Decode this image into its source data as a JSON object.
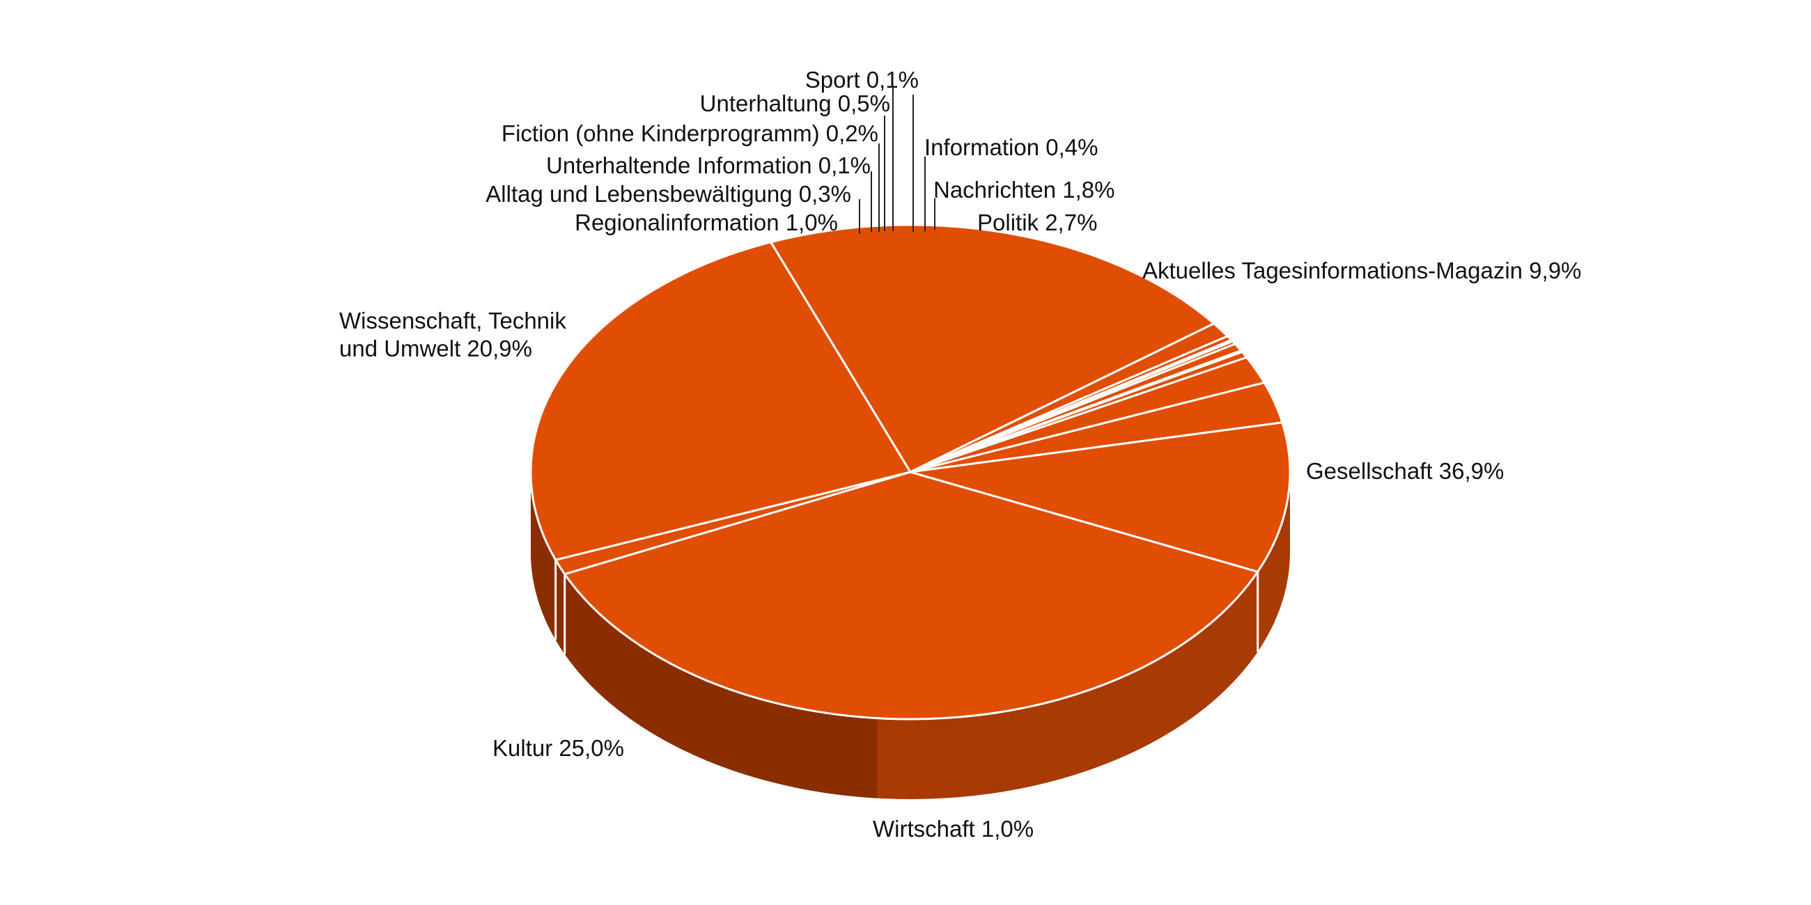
{
  "chart_data": {
    "type": "pie",
    "title": "",
    "style": "3d-pie",
    "colors": {
      "top": "#E04E04",
      "side": "#A83A04",
      "side_dark": "#8A2E00",
      "separator": "#FFFFFF",
      "text": "#111111"
    },
    "slices": [
      {
        "label": "Gesellschaft",
        "value": 36.9,
        "display": "Gesellschaft  36,9%"
      },
      {
        "label": "Wirtschaft",
        "value": 1.0,
        "display": "Wirtschaft  1,0%"
      },
      {
        "label": "Kultur",
        "value": 25.0,
        "display": "Kultur 25,0%"
      },
      {
        "label": "Wissenschaft, Technik und Umwelt",
        "value": 20.9,
        "display_lines": [
          "Wissenschaft, Technik",
          "und Umwelt  20,9%"
        ]
      },
      {
        "label": "Regionalinformation",
        "value": 1.0,
        "display": "Regionalinformation  1,0%"
      },
      {
        "label": "Alltag und Lebensbewältigung",
        "value": 0.3,
        "display": "Alltag und Lebensbewältigung  0,3%"
      },
      {
        "label": "Unterhaltende Information",
        "value": 0.1,
        "display": "Unterhaltende Information  0,1%"
      },
      {
        "label": "Fiction (ohne Kinderprogramm)",
        "value": 0.2,
        "display": "Fiction (ohne Kinderprogramm)  0,2%"
      },
      {
        "label": "Unterhaltung",
        "value": 0.5,
        "display": "Unterhaltung  0,5%"
      },
      {
        "label": "Sport",
        "value": 0.1,
        "display": "Sport  0,1%"
      },
      {
        "label": "Information",
        "value": 0.4,
        "display": "Information  0,4%"
      },
      {
        "label": "Nachrichten",
        "value": 1.8,
        "display": "Nachrichten  1,8%"
      },
      {
        "label": "Politik",
        "value": 2.7,
        "display": "Politik  2,7%"
      },
      {
        "label": "Aktuelles Tagesinformations-Magazin",
        "value": 9.9,
        "display": "Aktuelles Tagesinformations-Magazin  9,9%"
      }
    ]
  }
}
